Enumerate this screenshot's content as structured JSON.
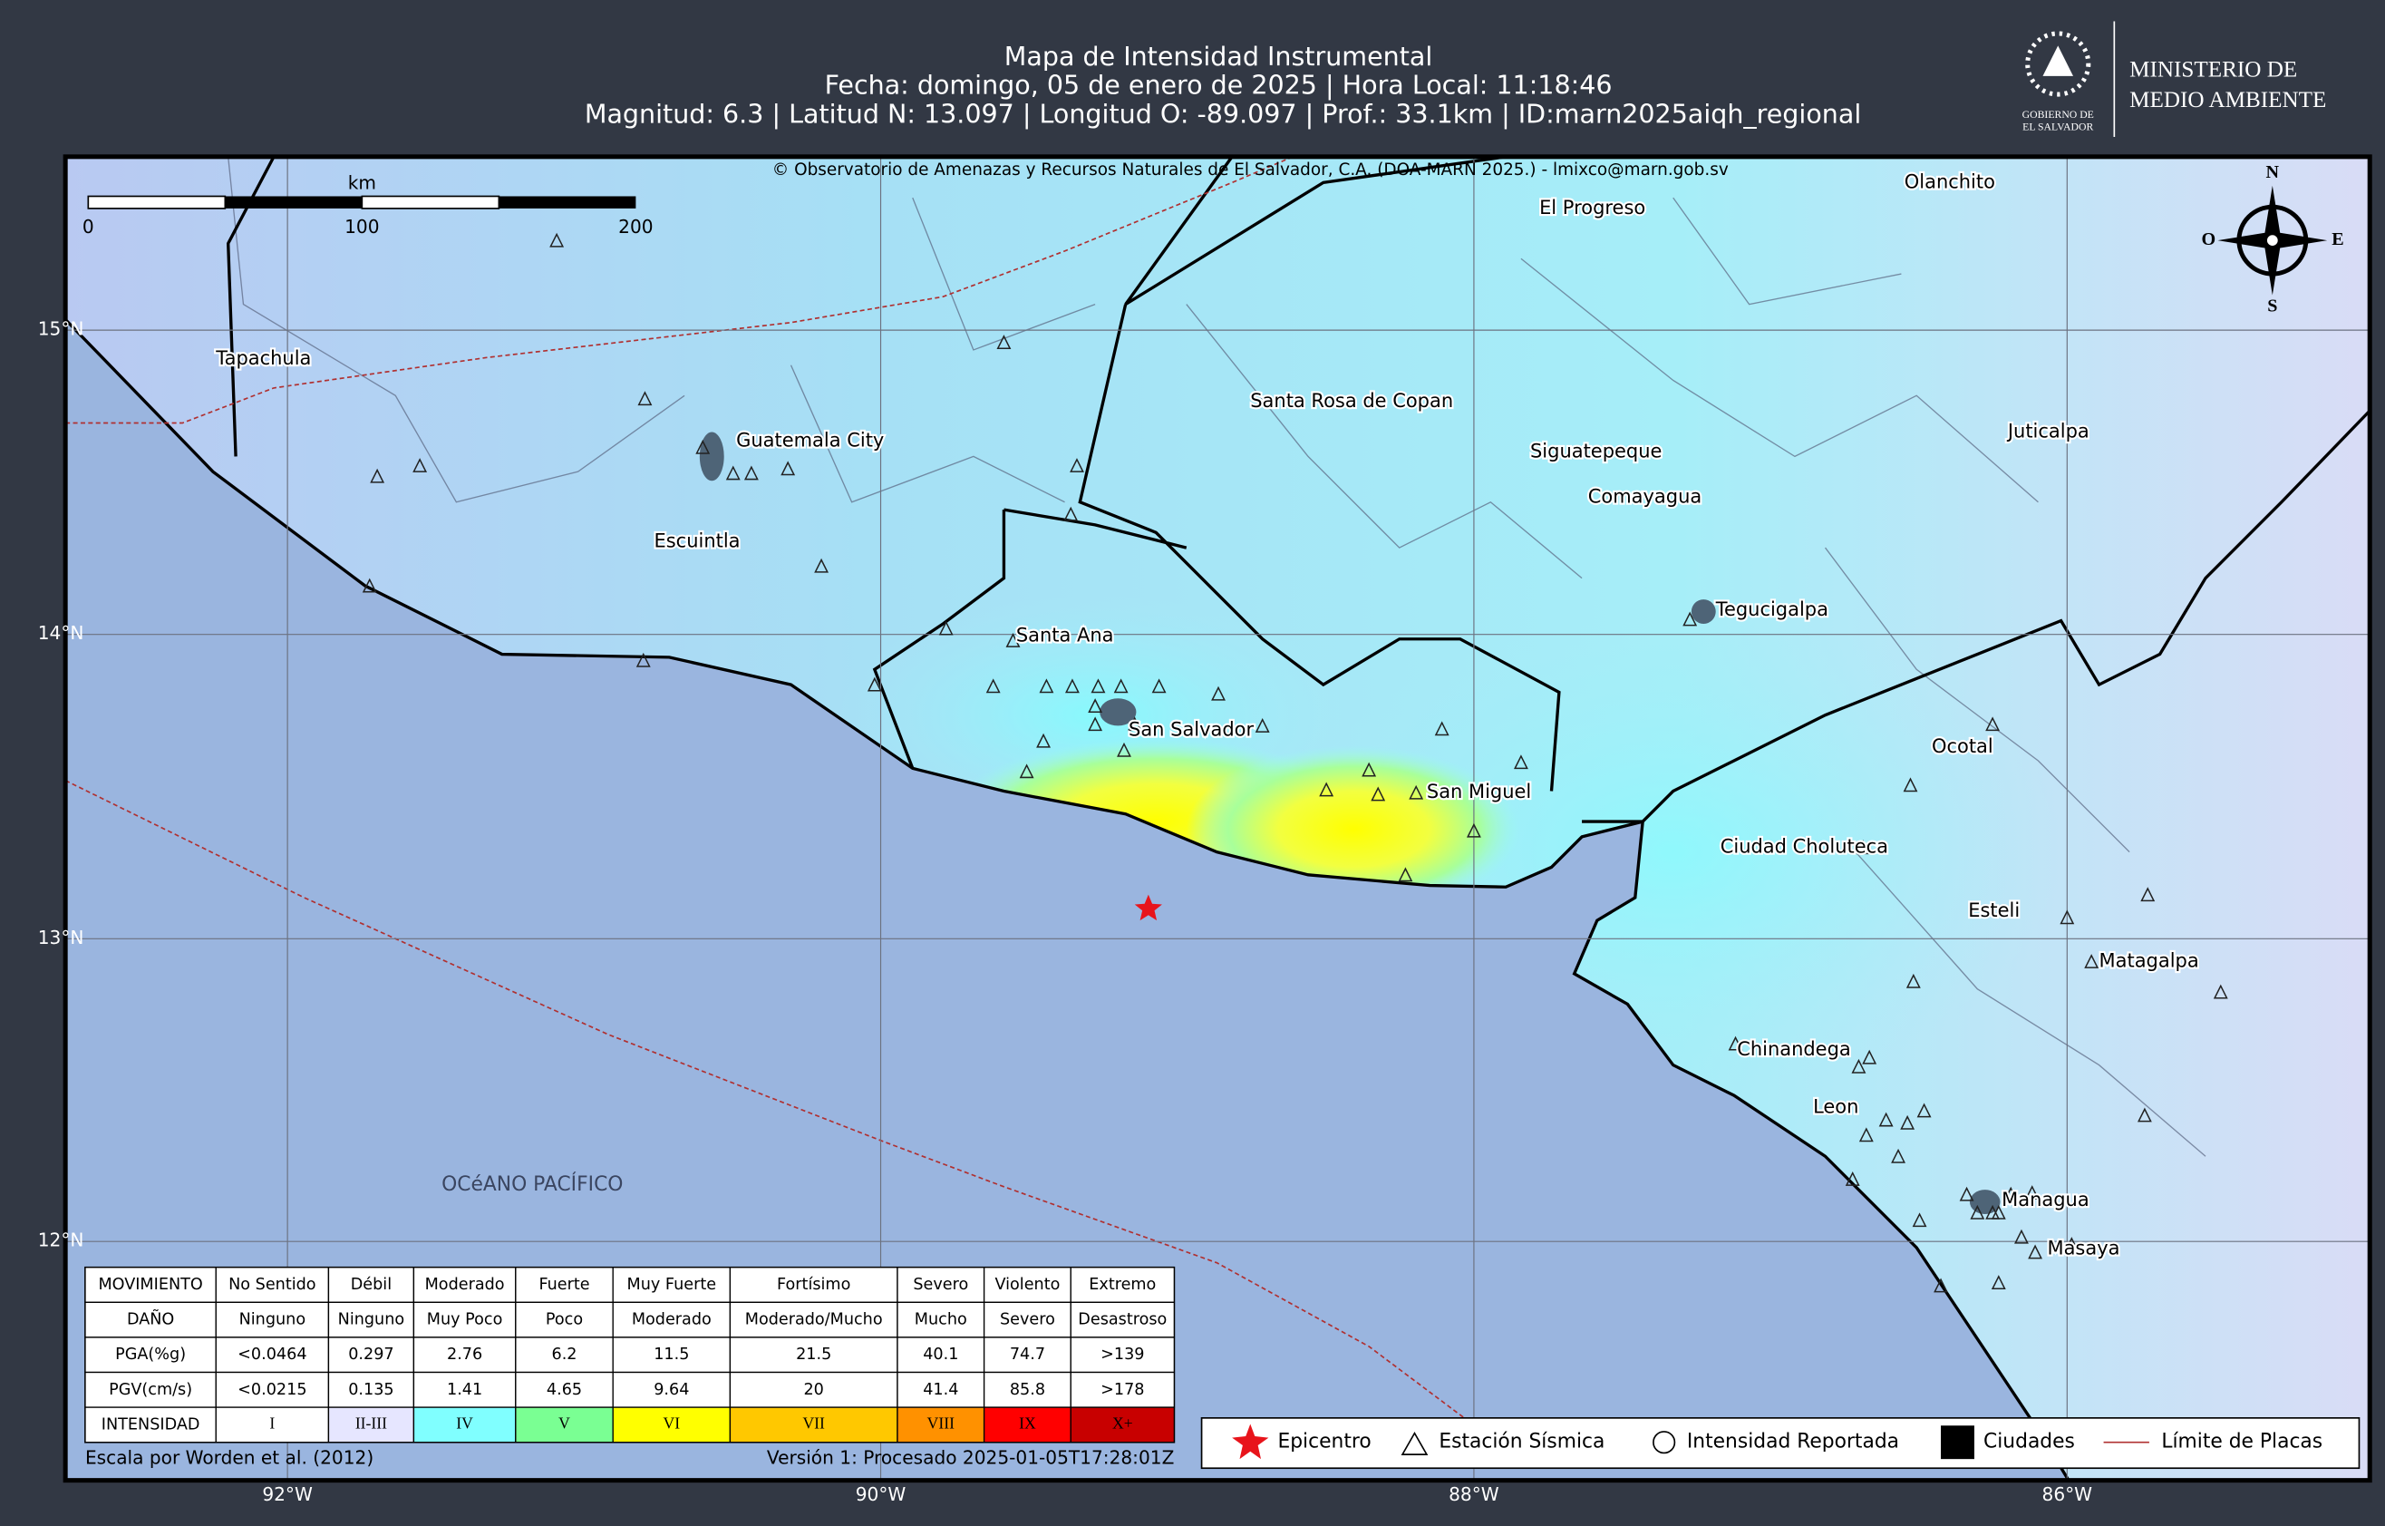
{
  "header": {
    "title": "Mapa de Intensidad Instrumental",
    "line2": "Fecha: domingo, 05 de enero de 2025 | Hora Local: 11:18:46",
    "line3": "Magnitud: 6.3 | Latitud N: 13.097 | Longitud O: -89.097 | Prof.: 33.1km | ID:marn2025aiqh_regional"
  },
  "logo": {
    "seal": [
      "GOBIERNO DE",
      "EL SALVADOR"
    ],
    "ministry": [
      "MINISTERIO DE",
      "MEDIO AMBIENTE"
    ]
  },
  "map": {
    "copyright": "© Observatorio de Amenazas y Recursos Naturales de El Salvador, C.A. (DOA-MARN 2025.) - lmixco@marn.gob.sv",
    "ocean": "OCéANO PACÍFICO",
    "cities": [
      "Tapachula",
      "Guatemala City",
      "Escuintla",
      "Santa Ana",
      "San Salvador",
      "San Miguel",
      "El Progreso",
      "Olanchito",
      "Santa Rosa de Copan",
      "Siguatepeque",
      "Comayagua",
      "Juticalpa",
      "Tegucigalpa",
      "Ocotal",
      "Ciudad Choluteca",
      "Esteli",
      "Matagalpa",
      "Chinandega",
      "Leon",
      "Managua",
      "Masaya"
    ],
    "lat_labels": [
      "15°N",
      "14°N",
      "13°N",
      "12°N"
    ],
    "lon_labels": [
      "92°W",
      "90°W",
      "88°W",
      "86°W"
    ],
    "scale_bar": {
      "unit": "km",
      "labels": [
        "0",
        "100",
        "200"
      ]
    },
    "compass": [
      "N",
      "O",
      "E",
      "S"
    ]
  },
  "legend_table": {
    "rows": [
      [
        "MOVIMIENTO",
        "No Sentido",
        "Débil",
        "Moderado",
        "Fuerte",
        "Muy Fuerte",
        "Fortísimo",
        "Severo",
        "Violento",
        "Extremo"
      ],
      [
        "DAÑO",
        "Ninguno",
        "Ninguno",
        "Muy Poco",
        "Poco",
        "Moderado",
        "Moderado/Mucho",
        "Mucho",
        "Severo",
        "Desastroso"
      ],
      [
        "PGA(%g)",
        "<0.0464",
        "0.297",
        "2.76",
        "6.2",
        "11.5",
        "21.5",
        "40.1",
        "74.7",
        ">139"
      ],
      [
        "PGV(cm/s)",
        "<0.0215",
        "0.135",
        "1.41",
        "4.65",
        "9.64",
        "20",
        "41.4",
        "85.8",
        ">178"
      ],
      [
        "INTENSIDAD",
        "I",
        "II-III",
        "IV",
        "V",
        "VI",
        "VII",
        "VIII",
        "IX",
        "X+"
      ]
    ],
    "colors": [
      "#ffffff",
      "#e6e6ff",
      "#80ffff",
      "#7aff93",
      "#ffff00",
      "#ffc800",
      "#ff9100",
      "#ff0000",
      "#c80000"
    ]
  },
  "legend": [
    "Epicentro",
    "Estación Sísmica",
    "Intensidad Reportada",
    "Ciudades",
    "Límite de Placas"
  ],
  "footer": {
    "left": "Escala por Worden et al. (2012)",
    "right": "Versión 1: Procesado 2025-01-05T17:28:01Z"
  }
}
